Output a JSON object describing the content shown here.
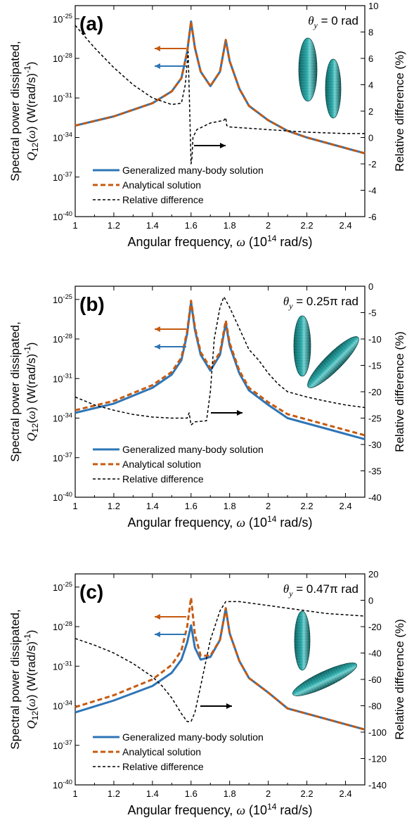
{
  "chart_data": [
    {
      "panel": "(a)",
      "type": "line",
      "theta_label": "θy = 0 rad",
      "xlabel": "Angular frequency, ω (10^14 rad/s)",
      "ylabel_left": "Spectral power dissipated, Q12(ω) (W(rad/s)^-1)",
      "ylabel_right": "Relative difference (%)",
      "xlim": [
        1,
        2.5
      ],
      "xticks": [
        "1",
        "1.2",
        "1.4",
        "1.6",
        "1.8",
        "2",
        "2.2",
        "2.4"
      ],
      "ylim_log_exp": [
        -40,
        -24
      ],
      "yticks_left": [
        "10-25",
        "10-28",
        "10-31",
        "10-34",
        "10-37",
        "10-40"
      ],
      "ylim_right": [
        -6,
        10
      ],
      "yticks_right": [
        "10",
        "8",
        "6",
        "4",
        "2",
        "0",
        "-2",
        "-4",
        "-6"
      ],
      "legend": [
        "Generalized many-body solution",
        "Analytical solution",
        "Relative difference"
      ],
      "series": [
        {
          "name": "Generalized many-body solution",
          "axis": "left",
          "color": "#2e75b6",
          "x": [
            1.0,
            1.2,
            1.4,
            1.5,
            1.55,
            1.58,
            1.6,
            1.62,
            1.65,
            1.7,
            1.75,
            1.78,
            1.8,
            1.85,
            1.9,
            2.0,
            2.1,
            2.2,
            2.3,
            2.4,
            2.5
          ],
          "y": [
            -33.1,
            -32.4,
            -31.4,
            -30.5,
            -29.5,
            -27.5,
            -25.2,
            -27.2,
            -29.0,
            -30.1,
            -29.0,
            -26.6,
            -28.2,
            -30.3,
            -31.6,
            -32.7,
            -33.5,
            -34.0,
            -34.4,
            -34.8,
            -35.2
          ]
        },
        {
          "name": "Analytical solution",
          "axis": "left",
          "color": "#c55a11",
          "x": [
            1.0,
            1.2,
            1.4,
            1.5,
            1.55,
            1.58,
            1.6,
            1.62,
            1.65,
            1.7,
            1.75,
            1.78,
            1.8,
            1.85,
            1.9,
            2.0,
            2.1,
            2.2,
            2.3,
            2.4,
            2.5
          ],
          "y": [
            -33.1,
            -32.4,
            -31.4,
            -30.5,
            -29.5,
            -27.5,
            -25.2,
            -27.2,
            -29.0,
            -30.1,
            -29.0,
            -26.6,
            -28.2,
            -30.3,
            -31.6,
            -32.7,
            -33.5,
            -34.0,
            -34.4,
            -34.8,
            -35.2
          ]
        },
        {
          "name": "Relative difference",
          "axis": "right",
          "color": "#000000",
          "x": [
            1.0,
            1.1,
            1.2,
            1.3,
            1.4,
            1.5,
            1.55,
            1.57,
            1.585,
            1.595,
            1.6,
            1.605,
            1.61,
            1.63,
            1.7,
            1.77,
            1.78,
            1.785,
            1.8,
            1.9,
            2.0,
            2.1,
            2.2,
            2.3,
            2.4,
            2.5
          ],
          "y": [
            8.5,
            6.8,
            5.3,
            4.0,
            3.0,
            2.5,
            2.6,
            4.0,
            6.5,
            1.0,
            -2.0,
            -1.5,
            0.0,
            0.6,
            1.1,
            1.3,
            1.5,
            0.9,
            0.8,
            0.7,
            0.6,
            0.5,
            0.4,
            0.35,
            0.3,
            0.3
          ]
        }
      ]
    },
    {
      "panel": "(b)",
      "type": "line",
      "theta_label": "θy = 0.25π rad",
      "xlabel": "Angular frequency, ω (10^14 rad/s)",
      "ylabel_left": "Spectral power dissipated, Q12(ω) (W(rad/s)^-1)",
      "ylabel_right": "Relative difference (%)",
      "xlim": [
        1,
        2.5
      ],
      "xticks": [
        "1",
        "1.2",
        "1.4",
        "1.6",
        "1.8",
        "2",
        "2.2",
        "2.4"
      ],
      "ylim_log_exp": [
        -40,
        -24
      ],
      "yticks_left": [
        "10-25",
        "10-28",
        "10-31",
        "10-34",
        "10-37",
        "10-40"
      ],
      "ylim_right": [
        -40,
        0
      ],
      "yticks_right": [
        "0",
        "-5",
        "-10",
        "-15",
        "-20",
        "-25",
        "-30",
        "-35",
        "-40"
      ],
      "legend": [
        "Generalized many-body solution",
        "Analytical solution",
        "Relative difference"
      ],
      "series": [
        {
          "name": "Generalized many-body solution",
          "axis": "left",
          "color": "#2e75b6",
          "x": [
            1.0,
            1.2,
            1.4,
            1.5,
            1.55,
            1.58,
            1.6,
            1.62,
            1.65,
            1.7,
            1.75,
            1.78,
            1.8,
            1.85,
            1.9,
            2.0,
            2.1,
            2.2,
            2.3,
            2.4,
            2.5
          ],
          "y": [
            -33.6,
            -32.9,
            -31.7,
            -30.7,
            -29.6,
            -27.6,
            -25.2,
            -27.3,
            -29.2,
            -30.4,
            -29.2,
            -26.8,
            -28.5,
            -30.6,
            -31.9,
            -33.0,
            -34.0,
            -34.4,
            -34.8,
            -35.2,
            -35.6
          ]
        },
        {
          "name": "Analytical solution",
          "axis": "left",
          "color": "#c55a11",
          "x": [
            1.0,
            1.2,
            1.4,
            1.5,
            1.55,
            1.58,
            1.6,
            1.62,
            1.65,
            1.7,
            1.75,
            1.78,
            1.8,
            1.85,
            1.9,
            2.0,
            2.1,
            2.2,
            2.3,
            2.4,
            2.5
          ],
          "y": [
            -33.4,
            -32.7,
            -31.5,
            -30.5,
            -29.4,
            -27.4,
            -25.1,
            -27.1,
            -29.0,
            -30.2,
            -29.0,
            -26.6,
            -28.3,
            -30.4,
            -31.7,
            -32.8,
            -33.7,
            -34.1,
            -34.5,
            -34.9,
            -35.3
          ]
        },
        {
          "name": "Relative difference",
          "axis": "right",
          "color": "#000000",
          "x": [
            1.0,
            1.1,
            1.2,
            1.3,
            1.4,
            1.5,
            1.58,
            1.59,
            1.6,
            1.61,
            1.62,
            1.68,
            1.7,
            1.72,
            1.75,
            1.77,
            1.8,
            1.85,
            1.9,
            1.95,
            2.0,
            2.05,
            2.1,
            2.2,
            2.3,
            2.4,
            2.5
          ],
          "y": [
            -21.0,
            -22.5,
            -23.5,
            -24.3,
            -24.8,
            -25.0,
            -25.0,
            -24.0,
            -26.3,
            -26.0,
            -25.7,
            -25.5,
            -20.0,
            -10.0,
            -4.0,
            -2.0,
            -4.0,
            -8.0,
            -12.0,
            -14.0,
            -16.5,
            -18.5,
            -20.0,
            -21.0,
            -21.8,
            -22.5,
            -23.0
          ]
        }
      ]
    },
    {
      "panel": "(c)",
      "type": "line",
      "theta_label": "θy = 0.47π rad",
      "xlabel": "Angular frequency, ω (10^14 rad/s)",
      "ylabel_left": "Spectral power dissipated, Q12(ω) (W(rad/s)^-1)",
      "ylabel_right": "Relative difference (%)",
      "xlim": [
        1,
        2.5
      ],
      "xticks": [
        "1",
        "1.2",
        "1.4",
        "1.6",
        "1.8",
        "2",
        "2.2",
        "2.4"
      ],
      "ylim_log_exp": [
        -40,
        -24
      ],
      "yticks_left": [
        "10-25",
        "10-28",
        "10-31",
        "10-34",
        "10-37",
        "10-40"
      ],
      "ylim_right": [
        -140,
        20
      ],
      "yticks_right": [
        "20",
        "0",
        "-20",
        "-40",
        "-60",
        "-80",
        "-100",
        "-120",
        "-140"
      ],
      "legend": [
        "Generalized many-body solution",
        "Analytical solution",
        "Relative difference"
      ],
      "series": [
        {
          "name": "Generalized many-body solution",
          "axis": "left",
          "color": "#2e75b6",
          "x": [
            1.0,
            1.2,
            1.4,
            1.5,
            1.55,
            1.58,
            1.6,
            1.62,
            1.65,
            1.7,
            1.75,
            1.78,
            1.8,
            1.85,
            1.9,
            2.0,
            2.1,
            2.2,
            2.3,
            2.4,
            2.5
          ],
          "y": [
            -34.5,
            -33.6,
            -32.5,
            -31.5,
            -30.5,
            -29.2,
            -27.9,
            -29.6,
            -30.5,
            -30.3,
            -29.0,
            -26.6,
            -28.5,
            -30.6,
            -31.9,
            -33.0,
            -34.2,
            -34.6,
            -35.0,
            -35.4,
            -35.8
          ]
        },
        {
          "name": "Analytical solution",
          "axis": "left",
          "color": "#c55a11",
          "x": [
            1.0,
            1.2,
            1.4,
            1.5,
            1.55,
            1.58,
            1.6,
            1.62,
            1.65,
            1.7,
            1.75,
            1.78,
            1.8,
            1.85,
            1.9,
            2.0,
            2.1,
            2.2,
            2.3,
            2.4,
            2.5
          ],
          "y": [
            -34.1,
            -33.2,
            -32.0,
            -30.9,
            -29.8,
            -28.0,
            -25.8,
            -28.6,
            -30.2,
            -30.2,
            -29.0,
            -26.6,
            -28.5,
            -30.6,
            -31.9,
            -33.0,
            -34.2,
            -34.6,
            -35.0,
            -35.4,
            -35.8
          ]
        },
        {
          "name": "Relative difference",
          "axis": "right",
          "color": "#000000",
          "x": [
            1.0,
            1.1,
            1.2,
            1.3,
            1.4,
            1.45,
            1.5,
            1.55,
            1.58,
            1.6,
            1.62,
            1.65,
            1.7,
            1.75,
            1.78,
            1.8,
            1.85,
            1.9,
            2.0,
            2.1,
            2.2,
            2.3,
            2.4,
            2.5
          ],
          "y": [
            -29.0,
            -34.0,
            -40.0,
            -48.0,
            -58.0,
            -65.0,
            -74.0,
            -86.0,
            -92.0,
            -92.0,
            -85.0,
            -65.0,
            -30.0,
            -8.0,
            -1.0,
            -1.0,
            -1.0,
            -2.0,
            -4.0,
            -6.0,
            -8.0,
            -10.0,
            -11.0,
            -12.0
          ]
        }
      ]
    }
  ]
}
